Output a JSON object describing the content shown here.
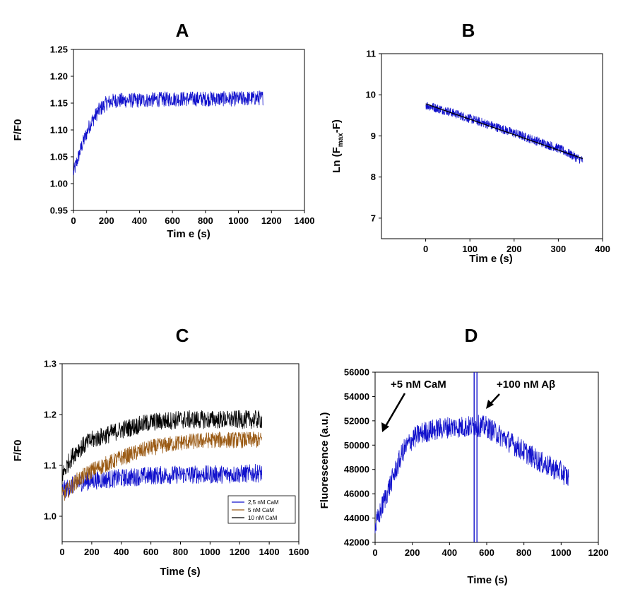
{
  "colors": {
    "blue": "#1010CC",
    "brown": "#9A5A14",
    "black": "#000000"
  },
  "chart_data": [
    {
      "panel": "A",
      "type": "line",
      "title": "A",
      "xlabel": "Tim e (s)",
      "ylabel": "F/F0",
      "xlim": [
        0,
        1400
      ],
      "ylim": [
        0.95,
        1.25
      ],
      "xticks": [
        "0",
        "200",
        "400",
        "600",
        "800",
        "1000",
        "1200",
        "1400"
      ],
      "yticks": [
        "0.95",
        "1.00",
        "1.05",
        "1.10",
        "1.15",
        "1.20",
        "1.25"
      ],
      "series": [
        {
          "name": "trace",
          "color": "#1010CC",
          "noise": 0.014,
          "x": [
            0,
            50,
            100,
            150,
            200,
            250,
            300,
            400,
            600,
            800,
            1000,
            1150
          ],
          "y": [
            1.02,
            1.07,
            1.11,
            1.135,
            1.15,
            1.155,
            1.155,
            1.155,
            1.158,
            1.158,
            1.158,
            1.16
          ]
        }
      ]
    },
    {
      "panel": "B",
      "type": "line",
      "title": "B",
      "xlabel": "Tim e (s)",
      "ylabel": "Ln (F",
      "ylabel_sub": "max",
      "ylabel_tail": "-F)",
      "xlim": [
        -100,
        400
      ],
      "ylim": [
        6.5,
        11
      ],
      "xticks": [
        "0",
        "100",
        "200",
        "300",
        "400"
      ],
      "yticks": [
        "7",
        "8",
        "9",
        "10",
        "11"
      ],
      "series": [
        {
          "name": "trace",
          "color": "#1010CC",
          "noise": 0.11,
          "x": [
            0,
            50,
            100,
            150,
            200,
            250,
            300,
            355
          ],
          "y": [
            9.75,
            9.6,
            9.42,
            9.25,
            9.07,
            8.88,
            8.7,
            8.4
          ]
        },
        {
          "name": "fit",
          "color": "#000000",
          "noise": 0,
          "x": [
            0,
            355
          ],
          "y": [
            9.78,
            8.45
          ]
        }
      ]
    },
    {
      "panel": "C",
      "type": "line",
      "title": "C",
      "xlabel": "Time (s)",
      "ylabel": "F/F0",
      "xlim": [
        0,
        1600
      ],
      "ylim": [
        0.95,
        1.3
      ],
      "xticks": [
        "0",
        "200",
        "400",
        "600",
        "800",
        "1000",
        "1200",
        "1400",
        "1600"
      ],
      "ytick_values": [
        1.0,
        1.1,
        1.2,
        1.3
      ],
      "yticks": [
        "1.0",
        "1.1",
        "1.2",
        "1.3"
      ],
      "legend": [
        "2,5 nM CaM",
        "5 nM CaM",
        "10 nM CaM"
      ],
      "series": [
        {
          "name": "2,5 nM CaM",
          "color": "#1010CC",
          "noise": 0.018,
          "x": [
            0,
            100,
            200,
            400,
            600,
            800,
            1000,
            1200,
            1350
          ],
          "y": [
            1.05,
            1.065,
            1.07,
            1.075,
            1.08,
            1.082,
            1.082,
            1.083,
            1.085
          ]
        },
        {
          "name": "5 nM CaM",
          "color": "#9A5A14",
          "noise": 0.016,
          "x": [
            0,
            100,
            200,
            400,
            600,
            800,
            1000,
            1200,
            1350
          ],
          "y": [
            1.04,
            1.07,
            1.09,
            1.115,
            1.135,
            1.145,
            1.15,
            1.15,
            1.15
          ]
        },
        {
          "name": "10 nM CaM",
          "color": "#000000",
          "noise": 0.018,
          "x": [
            0,
            50,
            100,
            200,
            400,
            600,
            800,
            1000,
            1200,
            1350
          ],
          "y": [
            1.08,
            1.11,
            1.13,
            1.15,
            1.17,
            1.185,
            1.19,
            1.19,
            1.19,
            1.19
          ]
        }
      ]
    },
    {
      "panel": "D",
      "type": "line",
      "title": "D",
      "xlabel": "Time (s)",
      "ylabel": "Fluorescence  (a.u.)",
      "xlim": [
        0,
        1200
      ],
      "ylim": [
        42000,
        56000
      ],
      "xticks": [
        "0",
        "200",
        "400",
        "600",
        "800",
        "1000",
        "1200"
      ],
      "yticks": [
        "42000",
        "44000",
        "46000",
        "48000",
        "50000",
        "52000",
        "54000",
        "56000"
      ],
      "annotations": [
        "+5 nM CaM",
        "+100 nM Aβ"
      ],
      "vline_x": 540,
      "series": [
        {
          "name": "trace",
          "color": "#1010CC",
          "noise": 900,
          "x": [
            0,
            50,
            100,
            150,
            200,
            250,
            300,
            400,
            500,
            540,
            600,
            700,
            800,
            900,
            1000,
            1040
          ],
          "y": [
            43200,
            45500,
            47500,
            49500,
            50500,
            51000,
            51200,
            51500,
            51500,
            51600,
            51500,
            50500,
            49500,
            48500,
            47800,
            47300
          ]
        }
      ]
    }
  ]
}
